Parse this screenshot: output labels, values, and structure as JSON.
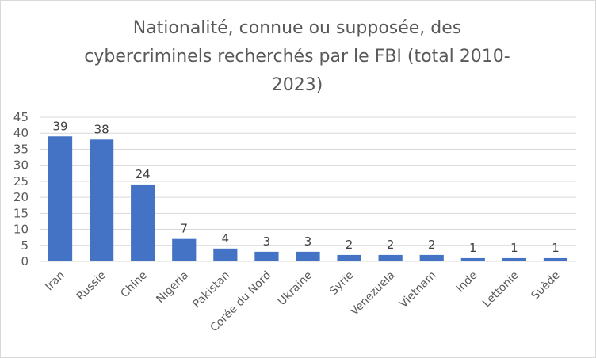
{
  "chart_data": {
    "type": "bar",
    "title_lines": [
      "Nationalité, connue ou supposée, des",
      "cybercriminels recherchés par le FBI (total 2010-",
      "2023)"
    ],
    "categories": [
      "Iran",
      "Russie",
      "Chine",
      "Nigeria",
      "Pakistan",
      "Corée du Nord",
      "Ukraine",
      "Syrie",
      "Venezuela",
      "Vietnam",
      "Inde",
      "Lettonie",
      "Suède"
    ],
    "values": [
      39,
      38,
      24,
      7,
      4,
      3,
      3,
      2,
      2,
      2,
      1,
      1,
      1
    ],
    "ylim": [
      0,
      45
    ],
    "yticks": [
      0,
      5,
      10,
      15,
      20,
      25,
      30,
      35,
      40,
      45
    ],
    "grid": true,
    "bar_color": "#4472c4",
    "grid_color": "#d9d9d9",
    "data_labels": true
  }
}
